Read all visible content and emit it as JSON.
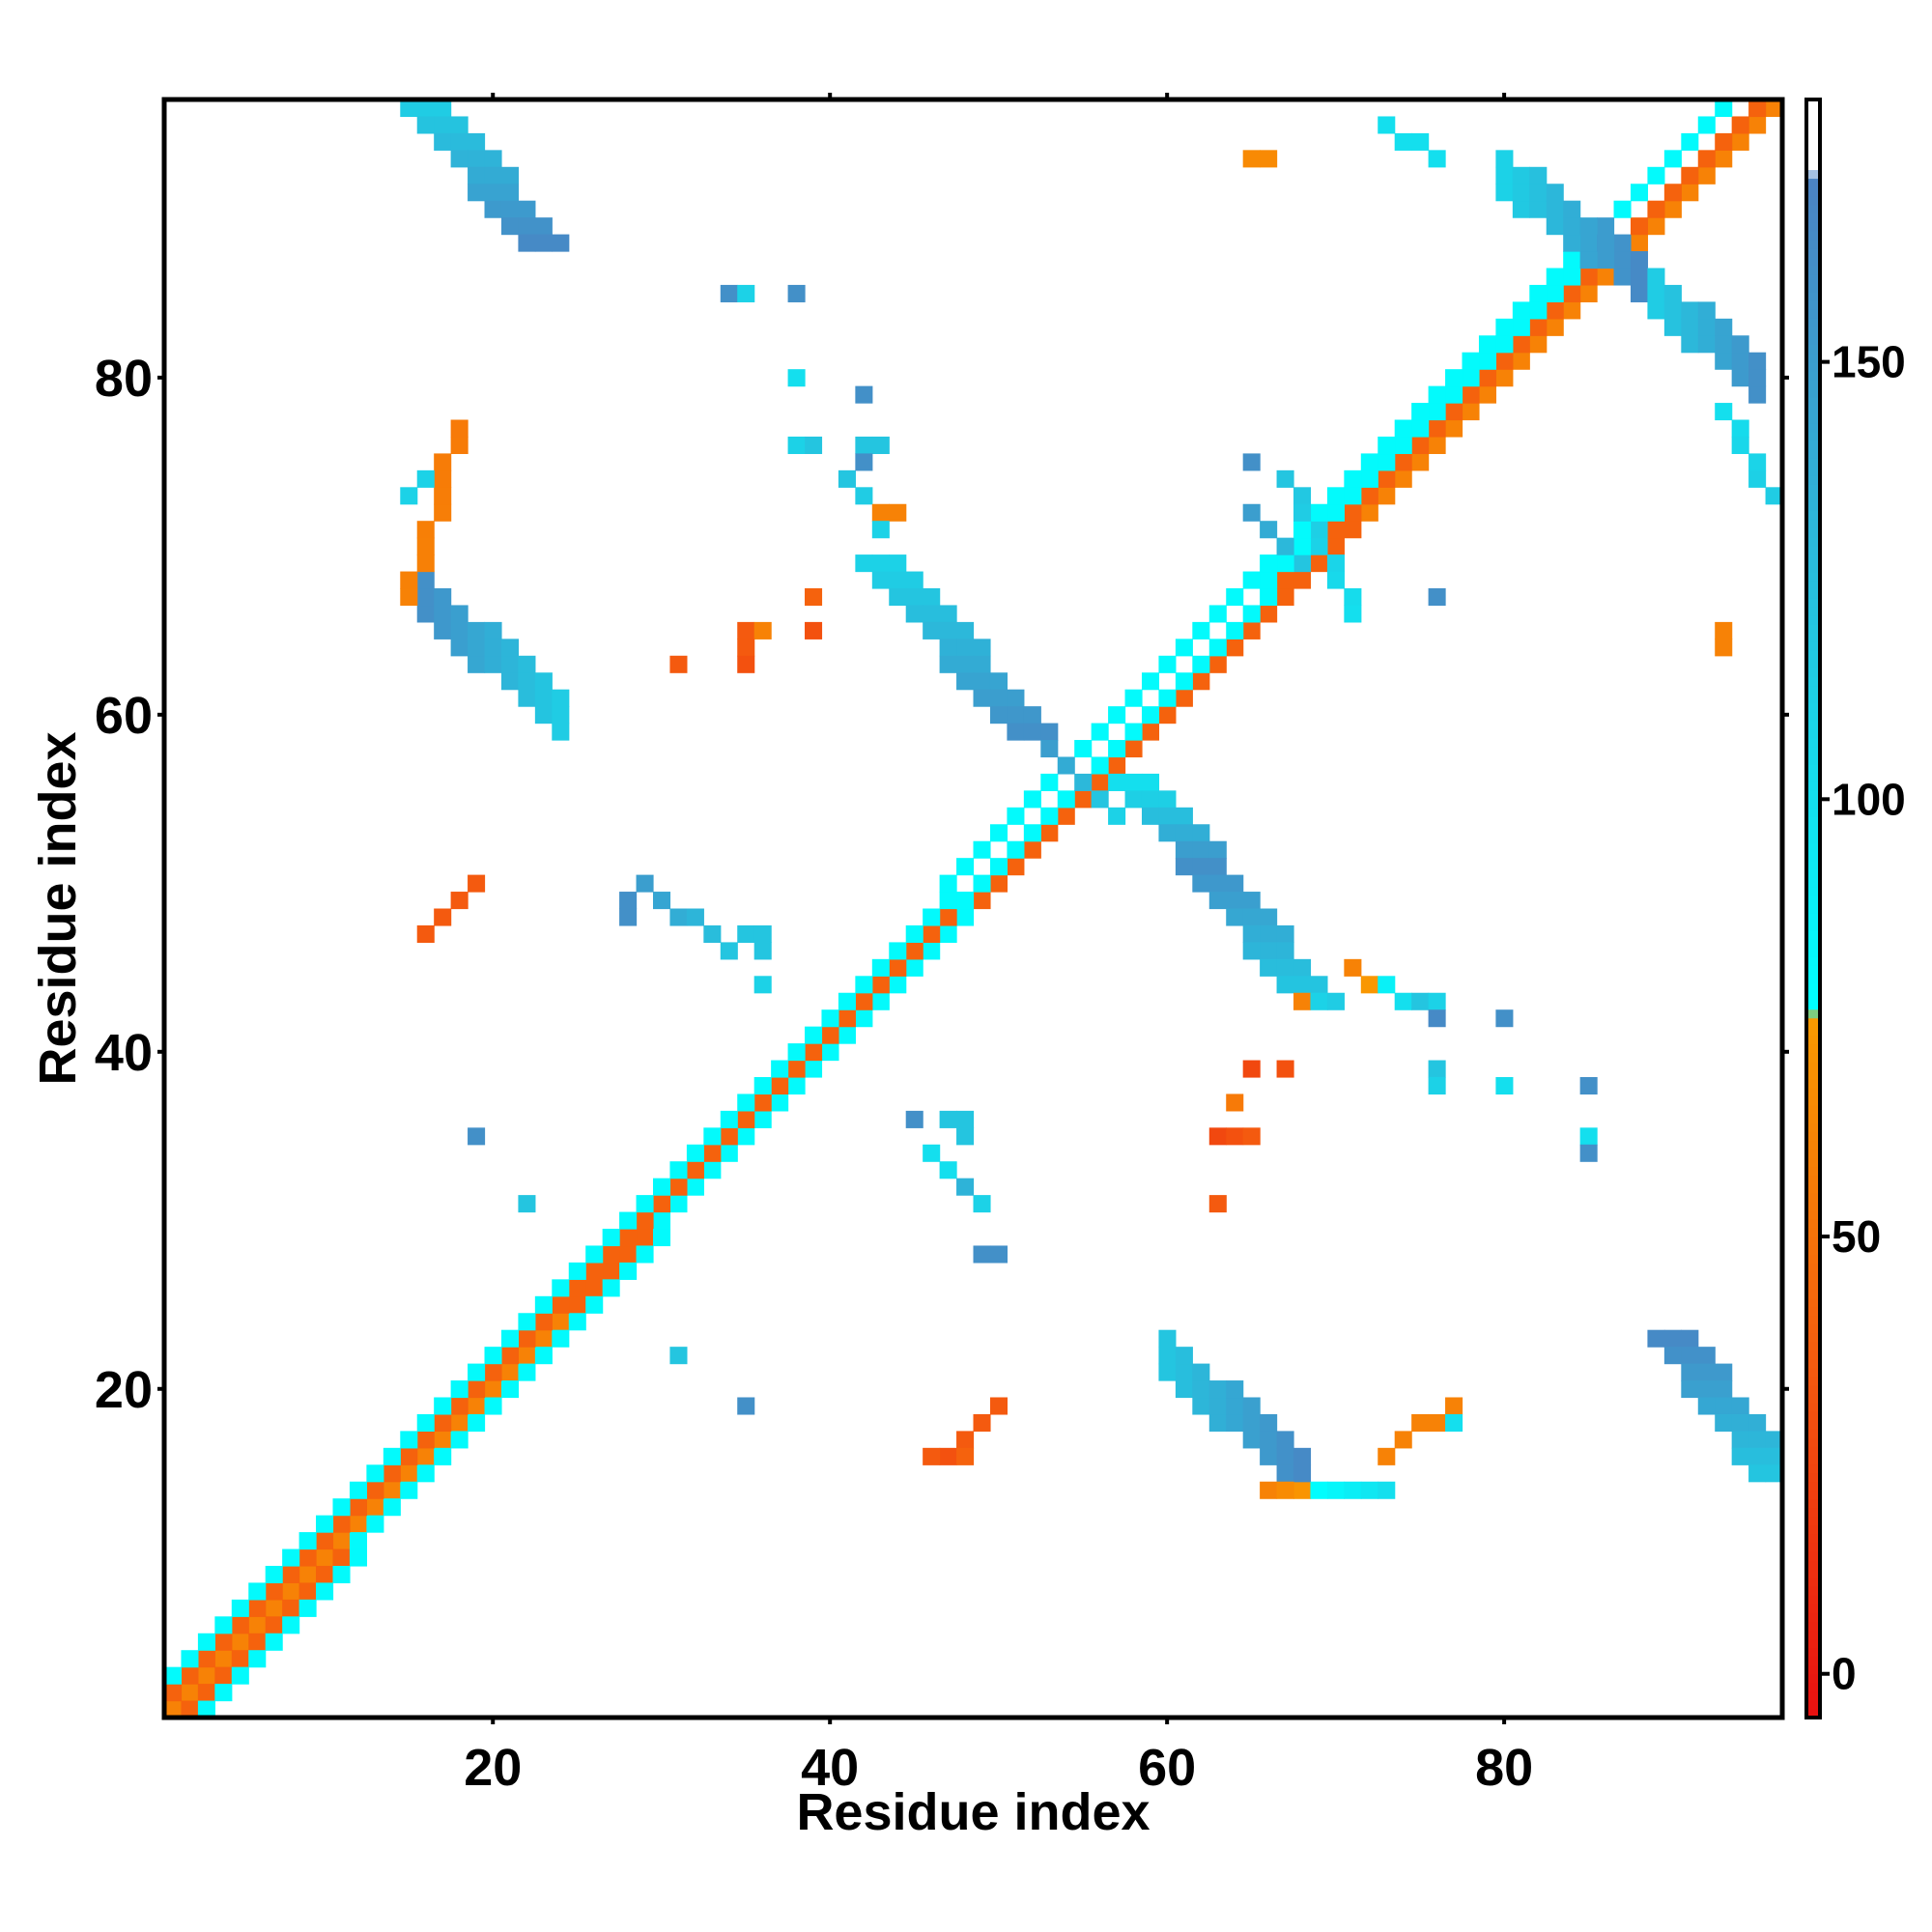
{
  "chart_data": {
    "type": "heatmap",
    "title": "",
    "xlabel": "Residue index",
    "ylabel": "Residue index",
    "xlim": [
      0.5,
      96.5
    ],
    "ylim": [
      0.5,
      96.5
    ],
    "xticks": [
      20,
      40,
      60,
      80
    ],
    "yticks": [
      20,
      40,
      60,
      80
    ],
    "grid": false,
    "legend": "right colorbar",
    "colorbar": {
      "range": [
        -5,
        180
      ],
      "ticks": [
        0,
        50,
        100,
        150
      ],
      "stops": [
        {
          "value": -5,
          "color": "#e81010"
        },
        {
          "value": 35,
          "color": "#f45a0f"
        },
        {
          "value": 75,
          "color": "#f99a00"
        },
        {
          "value": 76,
          "color": "#00ffff"
        },
        {
          "value": 120,
          "color": "#24c5e0"
        },
        {
          "value": 171,
          "color": "#4b82c2"
        },
        {
          "value": 172,
          "color": "#ffffff"
        },
        {
          "value": 180,
          "color": "#ffffff"
        }
      ]
    },
    "segments": [
      {
        "x": [
          1,
          96
        ],
        "y": [
          1,
          96
        ],
        "v": [
          -5,
          -5
        ],
        "w": 1,
        "kind": "diag"
      },
      {
        "x": [
          1,
          96
        ],
        "y": [
          1,
          96
        ],
        "v": [
          60,
          60
        ],
        "w": 2,
        "kind": "diag"
      },
      {
        "x": [
          2,
          94
        ],
        "y": [
          1,
          95
        ],
        "v": [
          40,
          40
        ],
        "w": 1,
        "kind": "diag"
      },
      {
        "x": [
          1,
          95
        ],
        "y": [
          2,
          96
        ],
        "v": [
          40,
          40
        ],
        "w": 1,
        "kind": "diag"
      },
      {
        "x": [
          3,
          93
        ],
        "y": [
          1,
          96
        ],
        "v": [
          80,
          80
        ],
        "w": 1,
        "kind": "diag"
      },
      {
        "x": [
          1,
          93
        ],
        "y": [
          3,
          96
        ],
        "v": [
          80,
          80
        ],
        "w": 1,
        "kind": "diag"
      },
      {
        "x": [
          16,
          23
        ],
        "y": [
          96,
          88
        ],
        "v": [
          115,
          165
        ],
        "w": 3
      },
      {
        "x": [
          16,
          24
        ],
        "y": [
          67,
          60
        ],
        "v": [
          160,
          115
        ],
        "w": 3
      },
      {
        "x": [
          15,
          18
        ],
        "y": [
          67,
          77
        ],
        "v": [
          60,
          55
        ],
        "w": 1
      },
      {
        "x": [
          15,
          16
        ],
        "y": [
          73,
          74
        ],
        "v": [
          110,
          110
        ],
        "w": 1
      },
      {
        "x": [
          43,
          52
        ],
        "y": [
          69,
          59
        ],
        "v": [
          110,
          160
        ],
        "w": 3
      },
      {
        "x": [
          53,
          57
        ],
        "y": [
          58,
          54
        ],
        "v": [
          150,
          110
        ],
        "w": 2
      },
      {
        "x": [
          58,
          62
        ],
        "y": [
          56,
          52
        ],
        "v": [
          100,
          150
        ],
        "w": 3
      },
      {
        "x": [
          62,
          69
        ],
        "y": [
          51,
          43
        ],
        "v": [
          160,
          115
        ],
        "w": 3
      },
      {
        "x": [
          60,
          68
        ],
        "y": [
          22,
          15
        ],
        "v": [
          120,
          165
        ],
        "w": 3
      },
      {
        "x": [
          66,
          73
        ],
        "y": [
          14,
          14
        ],
        "v": [
          60,
          100
        ],
        "w": 1
      },
      {
        "x": [
          73,
          77
        ],
        "y": [
          16,
          19
        ],
        "v": [
          60,
          60
        ],
        "w": 1
      },
      {
        "x": [
          90,
          96
        ],
        "y": [
          23,
          15
        ],
        "v": [
          165,
          120
        ],
        "w": 3
      },
      {
        "x": [
          80,
          88
        ],
        "y": [
          92,
          86
        ],
        "v": [
          110,
          165
        ],
        "w": 3
      },
      {
        "x": [
          89,
          95
        ],
        "y": [
          85,
          80
        ],
        "v": [
          115,
          160
        ],
        "w": 3
      },
      {
        "x": [
          73,
          76
        ],
        "y": [
          95,
          93
        ],
        "v": [
          100,
          100
        ],
        "w": 1
      },
      {
        "x": [
          93,
          96
        ],
        "y": [
          78,
          73
        ],
        "v": [
          100,
          115
        ],
        "w": 2
      },
      {
        "x": [
          67,
          71
        ],
        "y": [
          74,
          66
        ],
        "v": [
          120,
          100
        ],
        "w": 2
      },
      {
        "x": [
          65,
          68
        ],
        "y": [
          72,
          69
        ],
        "v": [
          150,
          120
        ],
        "w": 1
      },
      {
        "x": [
          41,
          43
        ],
        "y": [
          74,
          72
        ],
        "v": [
          120,
          110
        ],
        "w": 2
      },
      {
        "x": [
          29,
          34
        ],
        "y": [
          50,
          46
        ],
        "v": [
          150,
          120
        ],
        "w": 1
      },
      {
        "x": [
          16,
          19
        ],
        "y": [
          47,
          50
        ],
        "v": [
          35,
          35
        ],
        "w": 1
      },
      {
        "x": [
          71,
          74
        ],
        "y": [
          45,
          43
        ],
        "v": [
          60,
          100
        ],
        "w": 1
      },
      {
        "x": [
          46,
          49
        ],
        "y": [
          34,
          31
        ],
        "v": [
          100,
          150
        ],
        "w": 1
      }
    ],
    "points": [
      {
        "x": 65,
        "y": 93,
        "v": 65
      },
      {
        "x": 66,
        "y": 93,
        "v": 65
      },
      {
        "x": 34,
        "y": 85,
        "v": 160
      },
      {
        "x": 35,
        "y": 85,
        "v": 110
      },
      {
        "x": 38,
        "y": 85,
        "v": 160
      },
      {
        "x": 38,
        "y": 80,
        "v": 100
      },
      {
        "x": 42,
        "y": 79,
        "v": 160
      },
      {
        "x": 38,
        "y": 76,
        "v": 110
      },
      {
        "x": 39,
        "y": 76,
        "v": 120
      },
      {
        "x": 42,
        "y": 76,
        "v": 120
      },
      {
        "x": 43,
        "y": 76,
        "v": 120
      },
      {
        "x": 42,
        "y": 75,
        "v": 160
      },
      {
        "x": 43,
        "y": 72,
        "v": 60
      },
      {
        "x": 44,
        "y": 72,
        "v": 60
      },
      {
        "x": 43,
        "y": 71,
        "v": 110
      },
      {
        "x": 39,
        "y": 67,
        "v": 40
      },
      {
        "x": 35,
        "y": 65,
        "v": 35
      },
      {
        "x": 36,
        "y": 65,
        "v": 60
      },
      {
        "x": 39,
        "y": 65,
        "v": 30
      },
      {
        "x": 35,
        "y": 64,
        "v": 35
      },
      {
        "x": 31,
        "y": 63,
        "v": 35
      },
      {
        "x": 35,
        "y": 63,
        "v": 30
      },
      {
        "x": 65,
        "y": 75,
        "v": 160
      },
      {
        "x": 76,
        "y": 67,
        "v": 160
      },
      {
        "x": 93,
        "y": 65,
        "v": 60
      },
      {
        "x": 93,
        "y": 64,
        "v": 60
      },
      {
        "x": 28,
        "y": 49,
        "v": 160
      },
      {
        "x": 28,
        "y": 48,
        "v": 160
      },
      {
        "x": 35,
        "y": 47,
        "v": 120
      },
      {
        "x": 36,
        "y": 47,
        "v": 120
      },
      {
        "x": 36,
        "y": 46,
        "v": 120
      },
      {
        "x": 36,
        "y": 44,
        "v": 110
      },
      {
        "x": 68,
        "y": 43,
        "v": 60
      },
      {
        "x": 69,
        "y": 43,
        "v": 110
      },
      {
        "x": 75,
        "y": 43,
        "v": 120
      },
      {
        "x": 76,
        "y": 43,
        "v": 110
      },
      {
        "x": 76,
        "y": 42,
        "v": 165
      },
      {
        "x": 80,
        "y": 42,
        "v": 160
      },
      {
        "x": 65,
        "y": 39,
        "v": 25
      },
      {
        "x": 67,
        "y": 39,
        "v": 30
      },
      {
        "x": 76,
        "y": 39,
        "v": 120
      },
      {
        "x": 76,
        "y": 38,
        "v": 110
      },
      {
        "x": 80,
        "y": 38,
        "v": 100
      },
      {
        "x": 85,
        "y": 38,
        "v": 160
      },
      {
        "x": 19,
        "y": 35,
        "v": 160
      },
      {
        "x": 64,
        "y": 37,
        "v": 55
      },
      {
        "x": 63,
        "y": 35,
        "v": 25
      },
      {
        "x": 64,
        "y": 35,
        "v": 30
      },
      {
        "x": 65,
        "y": 35,
        "v": 35
      },
      {
        "x": 45,
        "y": 36,
        "v": 160
      },
      {
        "x": 47,
        "y": 36,
        "v": 120
      },
      {
        "x": 48,
        "y": 36,
        "v": 120
      },
      {
        "x": 48,
        "y": 35,
        "v": 120
      },
      {
        "x": 85,
        "y": 35,
        "v": 100
      },
      {
        "x": 85,
        "y": 34,
        "v": 160
      },
      {
        "x": 47,
        "y": 33,
        "v": 100
      },
      {
        "x": 49,
        "y": 31,
        "v": 110
      },
      {
        "x": 22,
        "y": 31,
        "v": 120
      },
      {
        "x": 63,
        "y": 31,
        "v": 35
      },
      {
        "x": 49,
        "y": 28,
        "v": 160
      },
      {
        "x": 50,
        "y": 28,
        "v": 160
      },
      {
        "x": 31,
        "y": 22,
        "v": 120
      },
      {
        "x": 35,
        "y": 19,
        "v": 160
      },
      {
        "x": 50,
        "y": 19,
        "v": 35
      },
      {
        "x": 49,
        "y": 18,
        "v": 35
      },
      {
        "x": 48,
        "y": 17,
        "v": 35
      },
      {
        "x": 47,
        "y": 16,
        "v": 30
      },
      {
        "x": 48,
        "y": 16,
        "v": 40
      },
      {
        "x": 46,
        "y": 16,
        "v": 35
      },
      {
        "x": 77,
        "y": 19,
        "v": 60
      },
      {
        "x": 77,
        "y": 18,
        "v": 100
      }
    ]
  }
}
